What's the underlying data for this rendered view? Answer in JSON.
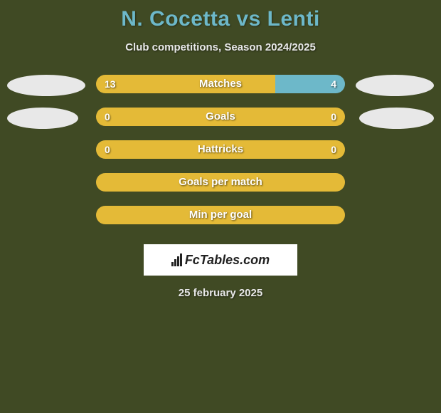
{
  "title": "N. Cocetta vs Lenti",
  "subtitle": "Club competitions, Season 2024/2025",
  "colors": {
    "player1": "#e4ba37",
    "player2": "#6db8c9",
    "background": "#404a24"
  },
  "rows": [
    {
      "label": "Matches",
      "left_val": "13",
      "right_val": "4",
      "left_pct": 72,
      "right_pct": 28,
      "left_color": "#e4ba37",
      "right_color": "#6db8c9",
      "show_avatars": true,
      "avatar_row": 0
    },
    {
      "label": "Goals",
      "left_val": "0",
      "right_val": "0",
      "left_pct": 50,
      "right_pct": 50,
      "left_color": "#e4ba37",
      "right_color": "#e4ba37",
      "show_avatars": true,
      "avatar_row": 1
    },
    {
      "label": "Hattricks",
      "left_val": "0",
      "right_val": "0",
      "left_pct": 50,
      "right_pct": 50,
      "left_color": "#e4ba37",
      "right_color": "#e4ba37",
      "show_avatars": false
    },
    {
      "label": "Goals per match",
      "left_val": "",
      "right_val": "",
      "left_pct": 100,
      "right_pct": 0,
      "left_color": "#e4ba37",
      "right_color": "#e4ba37",
      "show_avatars": false,
      "full_rounded": true
    },
    {
      "label": "Min per goal",
      "left_val": "",
      "right_val": "",
      "left_pct": 100,
      "right_pct": 0,
      "left_color": "#e4ba37",
      "right_color": "#e4ba37",
      "show_avatars": false,
      "full_rounded": true
    }
  ],
  "logo_text": "FcTables.com",
  "date": "25 february 2025",
  "avatar_ellipse": {
    "left_widths": [
      110,
      100
    ],
    "right_widths": [
      110,
      105
    ]
  }
}
